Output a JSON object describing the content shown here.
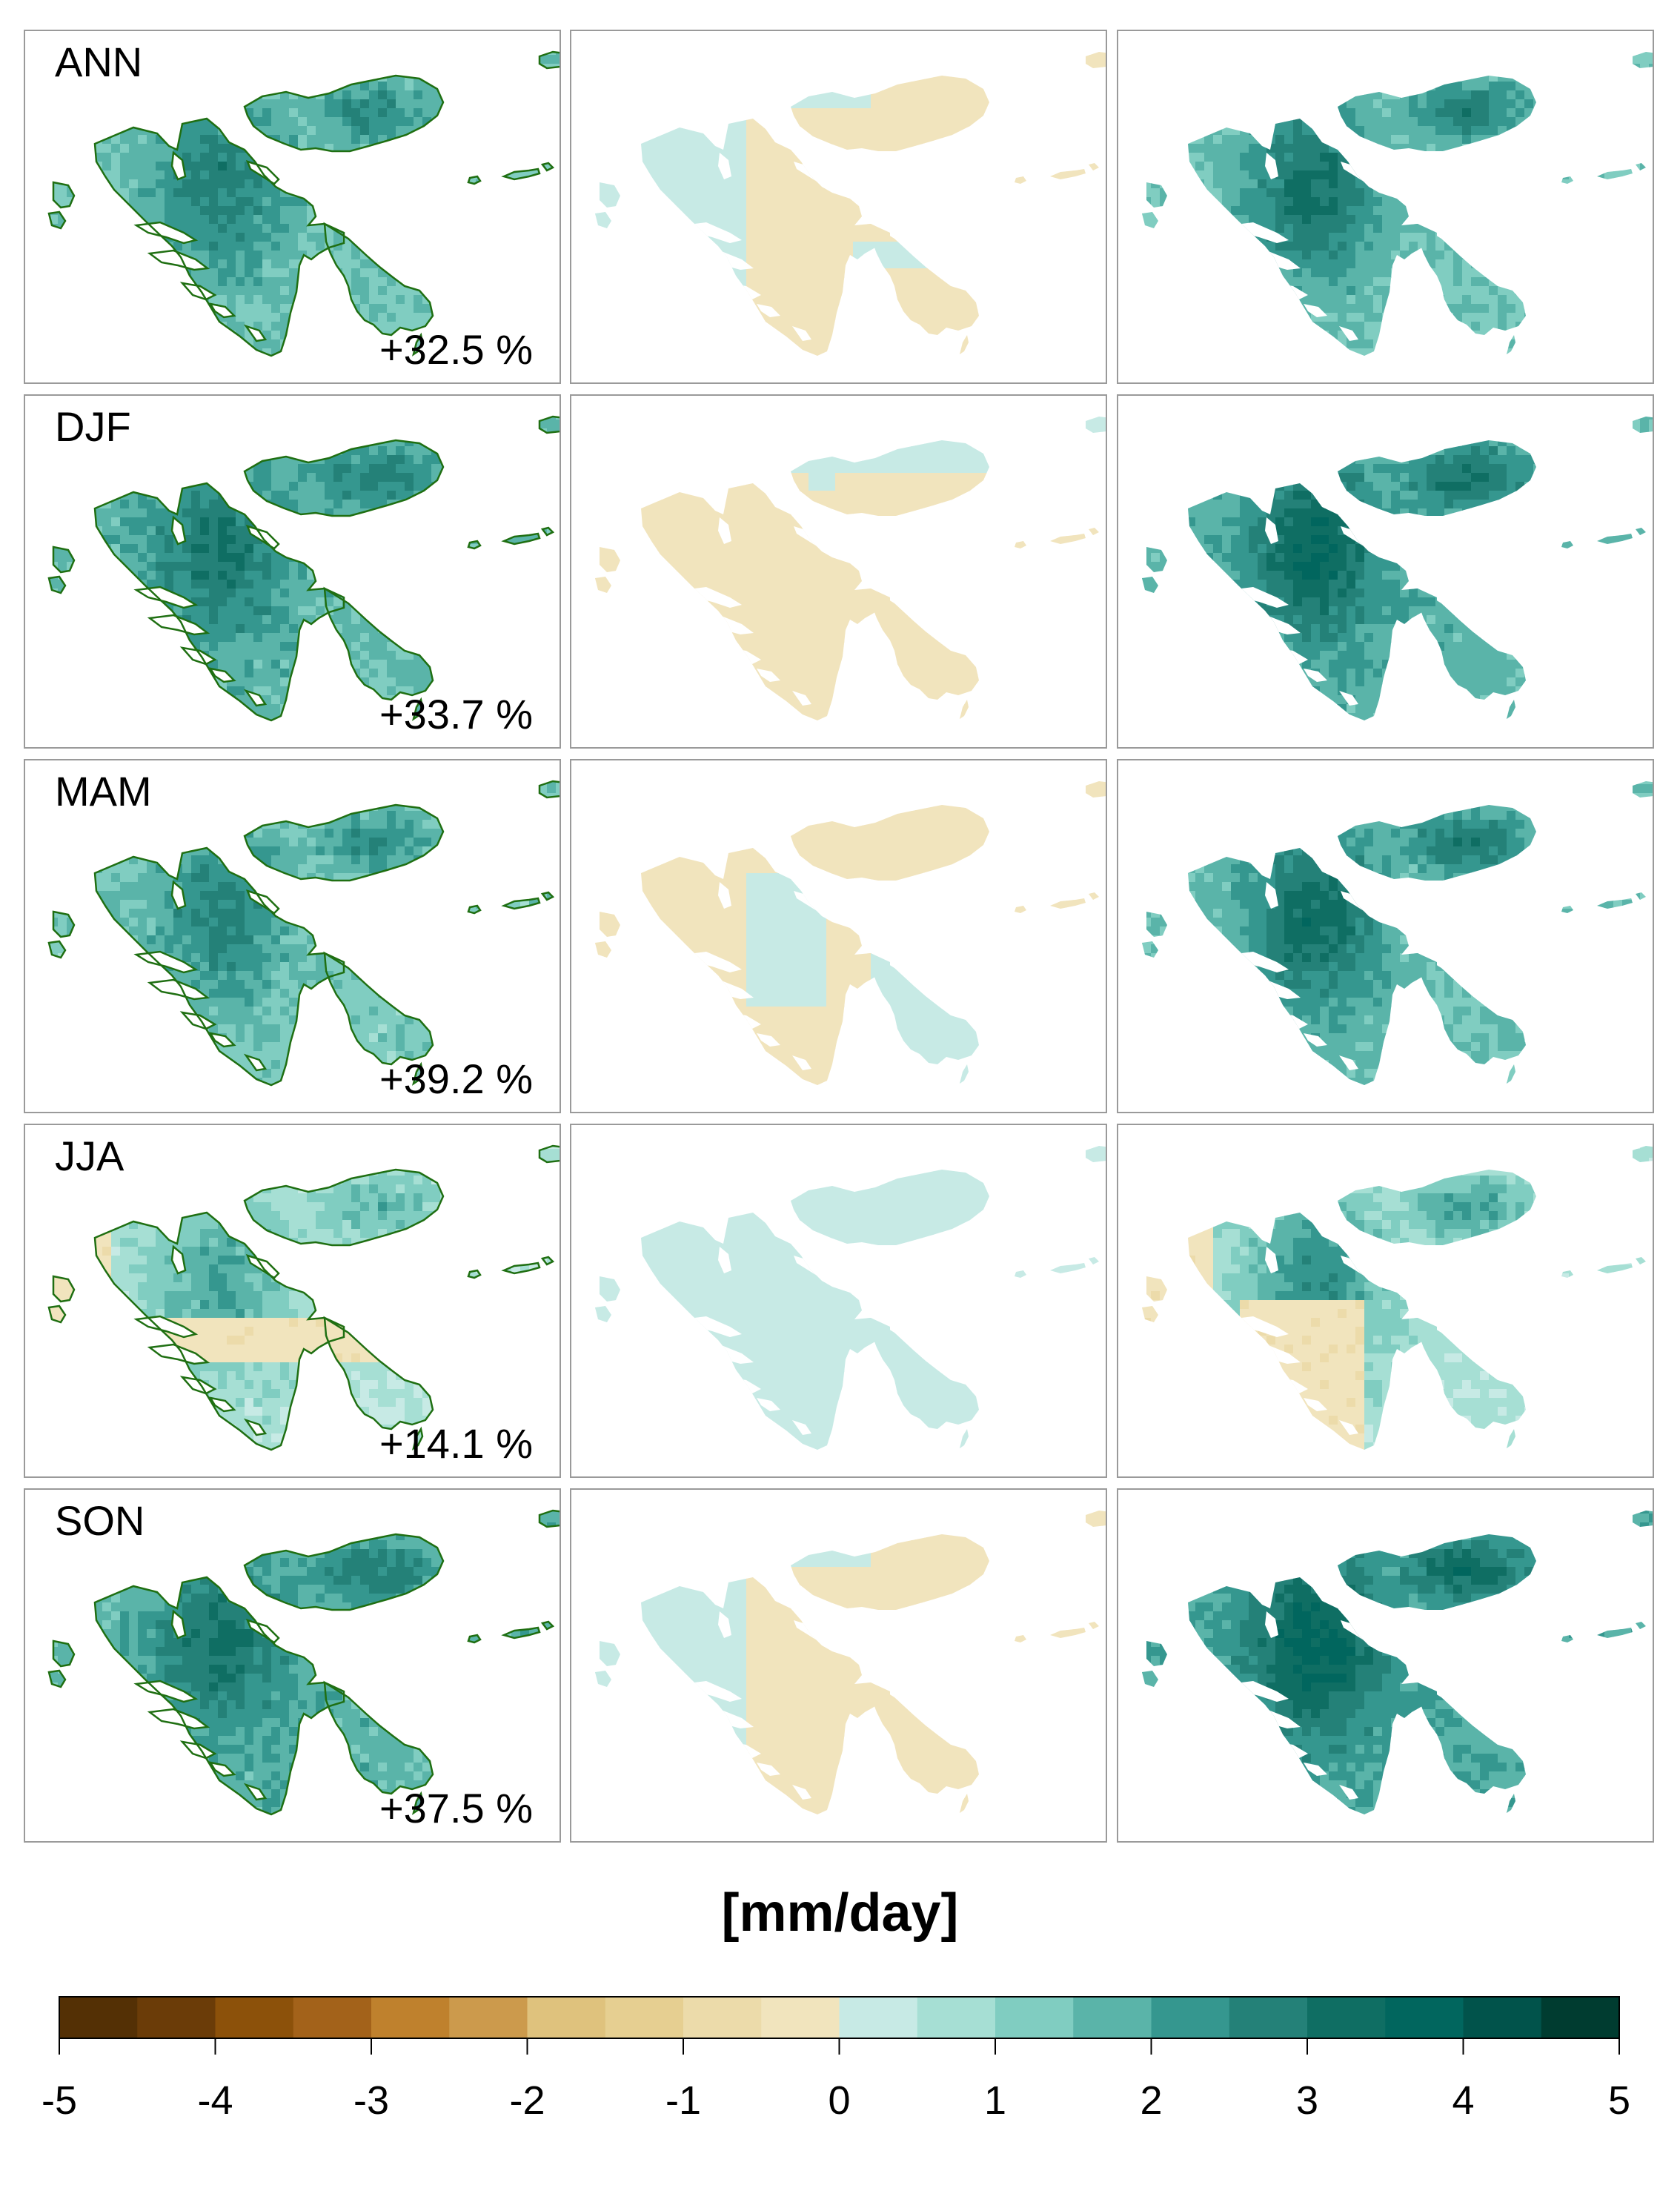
{
  "rows": [
    {
      "season": "ANN",
      "percent": "+32.5 %",
      "panel_b_mode": "ann",
      "panel_c_mode": "ann"
    },
    {
      "season": "DJF",
      "percent": "+33.7 %",
      "panel_b_mode": "djf",
      "panel_c_mode": "djf"
    },
    {
      "season": "MAM",
      "percent": "+39.2 %",
      "panel_b_mode": "mam",
      "panel_c_mode": "mam"
    },
    {
      "season": "JJA",
      "percent": "+14.1 %",
      "panel_b_mode": "jja",
      "panel_c_mode": "jja"
    },
    {
      "season": "SON",
      "percent": "+37.5 %",
      "panel_b_mode": "son",
      "panel_c_mode": "son"
    }
  ],
  "unit_label": "[mm/day]",
  "colorbar": {
    "min": -5,
    "max": 5,
    "step": 0.5,
    "tick_labels": [
      "-5",
      "-4",
      "-3",
      "-2",
      "-1",
      "0",
      "1",
      "2",
      "3",
      "4",
      "5"
    ],
    "colors": [
      "#543005",
      "#6b3c08",
      "#8c510a",
      "#a3621a",
      "#bf812d",
      "#cc9a4c",
      "#dfc27d",
      "#e6cf91",
      "#ecdbaa",
      "#f1e4bd",
      "#c7eae5",
      "#a6dfd4",
      "#80cdc1",
      "#5ab4a9",
      "#35978f",
      "#248178",
      "#0f6e63",
      "#01665e",
      "#01534b",
      "#003c30"
    ]
  },
  "colors": {
    "contour": "#1f6f12",
    "panel_border": "#9a9a9a"
  }
}
